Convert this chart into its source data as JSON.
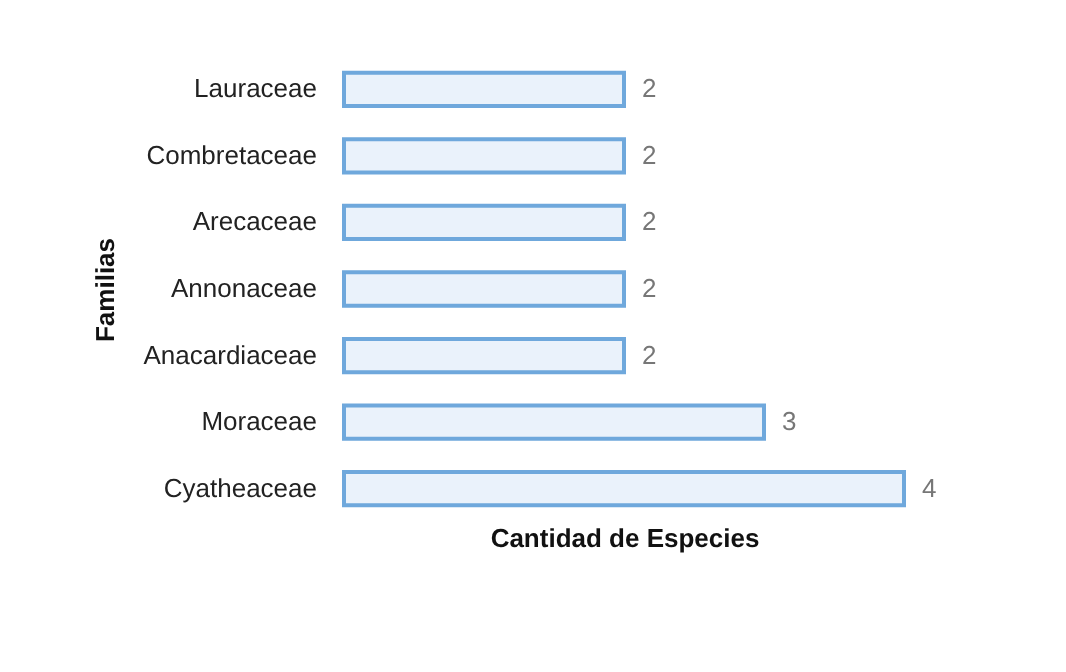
{
  "chart_data": {
    "type": "bar",
    "orientation": "horizontal",
    "xlabel": "Cantidad de Especies",
    "ylabel": "Familias",
    "categories": [
      "Lauraceae",
      "Combretaceae",
      "Arecaceae",
      "Annonaceae",
      "Anacardiaceae",
      "Moraceae",
      "Cyatheaceae"
    ],
    "values": [
      2,
      2,
      2,
      2,
      2,
      3,
      4
    ],
    "color": "#eaf2fb",
    "data_labels": true
  }
}
